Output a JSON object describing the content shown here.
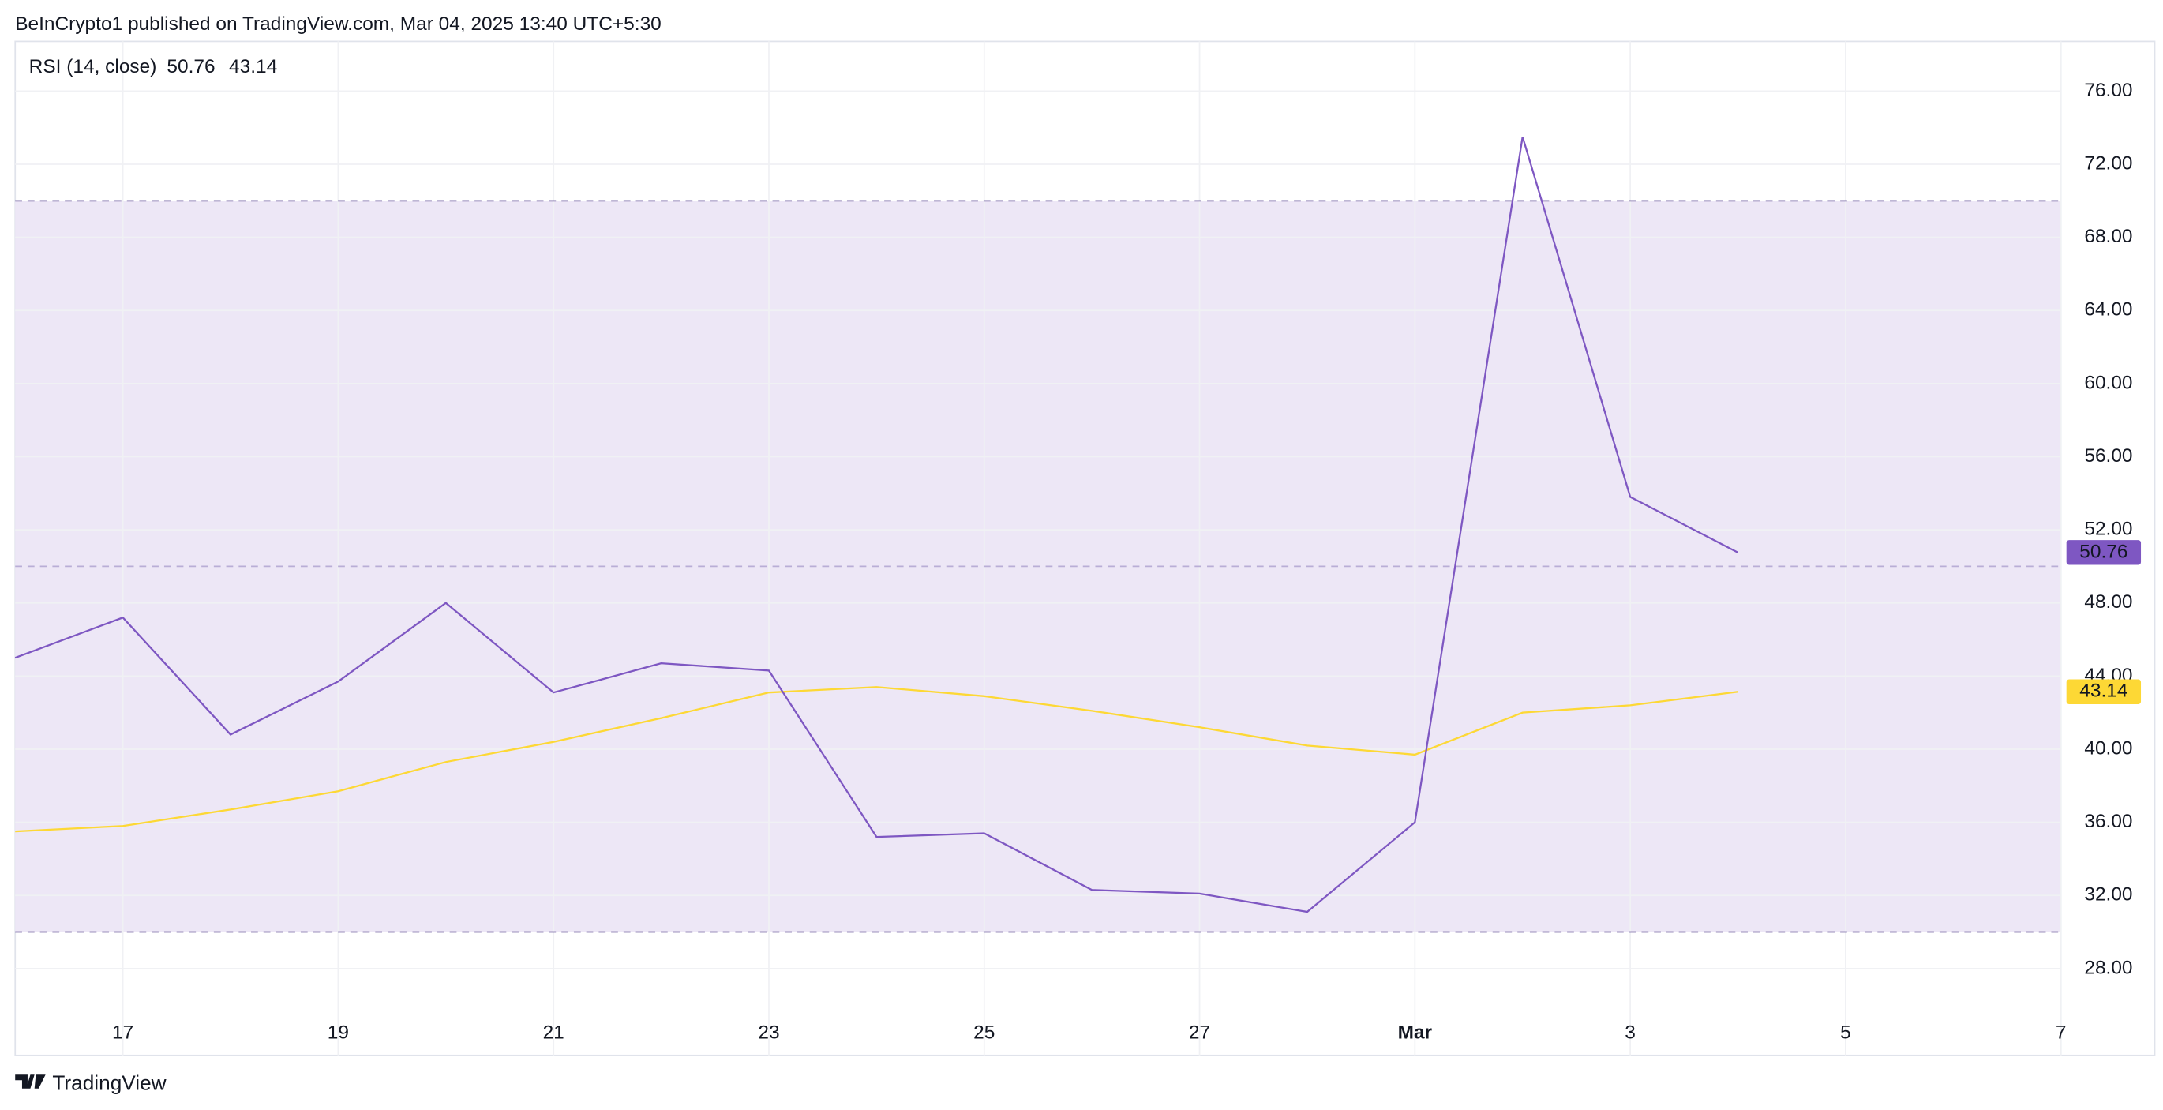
{
  "header": "BeInCrypto1 published on TradingView.com, Mar 04, 2025 13:40 UTC+5:30",
  "footer": "TradingView",
  "chart_data": {
    "type": "line",
    "title": "RSI (14, close)",
    "x": [
      16,
      17,
      18,
      19,
      20,
      21,
      22,
      23,
      24,
      25,
      26,
      27,
      28,
      29,
      30,
      31,
      32
    ],
    "series": [
      {
        "color": "#7e57c2",
        "values": [
          45.0,
          47.2,
          40.8,
          43.7,
          48.0,
          43.1,
          44.7,
          44.3,
          35.2,
          35.4,
          32.3,
          32.1,
          31.1,
          36.0,
          73.5,
          53.8,
          50.76
        ]
      },
      {
        "color": "#fdd835",
        "values": [
          35.5,
          35.8,
          36.7,
          37.7,
          39.3,
          40.4,
          41.7,
          43.1,
          43.4,
          42.9,
          42.1,
          41.2,
          40.2,
          39.7,
          42.0,
          42.4,
          43.14
        ]
      }
    ],
    "xlim": [
      16,
      35
    ],
    "xticks": [
      17,
      19,
      21,
      23,
      25,
      27,
      {
        "value": 29,
        "label": "Mar"
      },
      {
        "value": 31,
        "label": "3"
      },
      {
        "value": 33,
        "label": "5"
      },
      {
        "value": 35,
        "label": "7"
      }
    ],
    "ylim": [
      23.25,
      78.72
    ],
    "yticks": [
      {
        "value": 28,
        "label": "28.00"
      },
      {
        "value": 32,
        "label": "32.00"
      },
      {
        "value": 36,
        "label": "36.00"
      },
      {
        "value": 40,
        "label": "40.00"
      },
      {
        "value": 44,
        "label": "44.00"
      },
      {
        "value": 48,
        "label": "48.00"
      },
      {
        "value": 52,
        "label": "52.00"
      },
      {
        "value": 56,
        "label": "56.00"
      },
      {
        "value": 60,
        "label": "60.00"
      },
      {
        "value": 64,
        "label": "64.00"
      },
      {
        "value": 68,
        "label": "68.00"
      },
      {
        "value": 72,
        "label": "72.00"
      },
      {
        "value": 76,
        "label": "76.00"
      }
    ],
    "bands": [
      30,
      50,
      70
    ],
    "band_fill": "#ede7f6",
    "grid": true
  }
}
